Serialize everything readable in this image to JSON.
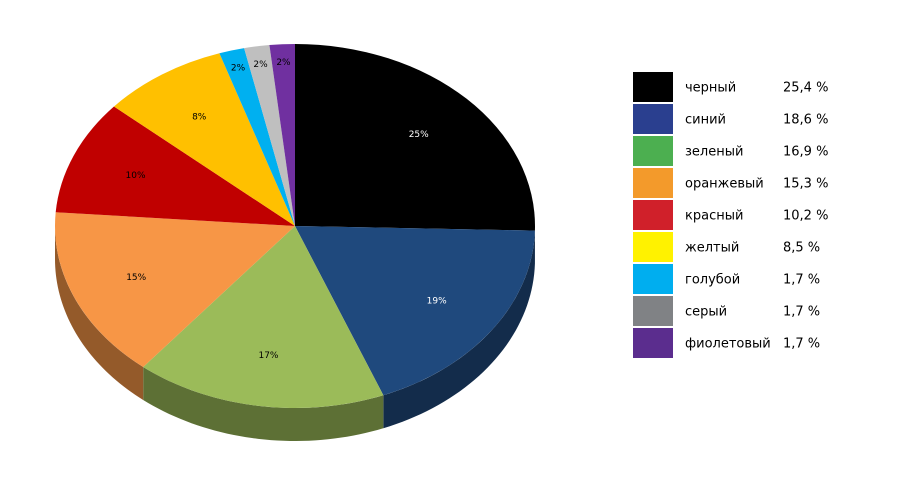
{
  "chart_data": {
    "type": "pie3d",
    "categories": [
      "черный",
      "синий",
      "зеленый",
      "оранжевый",
      "красный",
      "желтый",
      "голубой",
      "серый",
      "фиолетовый"
    ],
    "values": [
      25.4,
      18.6,
      16.9,
      15.3,
      10.2,
      8.5,
      1.7,
      1.7,
      1.7
    ],
    "value_labels": [
      "25,4 %",
      "18,6 %",
      "16,9 %",
      "15,3 %",
      "10,2 %",
      "8,5 %",
      "1,7 %",
      "1,7 %",
      "1,7 %"
    ],
    "slice_labels": [
      "25%",
      "19%",
      "17%",
      "15%",
      "10%",
      "8%",
      "2%",
      "2%",
      "2%"
    ],
    "colors": [
      "#000000",
      "#1f497d",
      "#9bbb59",
      "#f79646",
      "#c00000",
      "#ffc000",
      "#00b0f0",
      "#bfbfbf",
      "#7030a0"
    ],
    "legend_colors": [
      "#000000",
      "#2a3f8f",
      "#4caf50",
      "#f39a2b",
      "#d0202a",
      "#fff200",
      "#00aeef",
      "#808285",
      "#5b2d8e"
    ],
    "legend": "right"
  }
}
